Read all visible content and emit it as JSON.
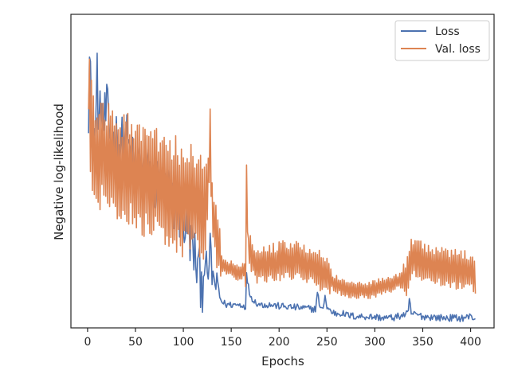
{
  "chart_data": {
    "type": "line",
    "title": "",
    "xlabel": "Epochs",
    "ylabel": "Negative log-likelihood",
    "xlim": [
      -17.4,
      424.5
    ],
    "ylim": [
      0,
      100
    ],
    "x_ticks": [
      0,
      50,
      100,
      150,
      200,
      250,
      300,
      350,
      400
    ],
    "y_ticks_visible": false,
    "grid": false,
    "legend": "top-right",
    "series": [
      {
        "name": "Loss",
        "color": "#4c72b0",
        "keypoints": [
          [
            1,
            74
          ],
          [
            2,
            100
          ],
          [
            3,
            88
          ],
          [
            4,
            70
          ],
          [
            5,
            50
          ],
          [
            6,
            72
          ],
          [
            8,
            60
          ],
          [
            10,
            86
          ],
          [
            12,
            64
          ],
          [
            14,
            75
          ],
          [
            16,
            66
          ],
          [
            20,
            72
          ],
          [
            25,
            60
          ],
          [
            30,
            63
          ],
          [
            35,
            60
          ],
          [
            40,
            63
          ],
          [
            45,
            56
          ],
          [
            50,
            52
          ],
          [
            55,
            55
          ],
          [
            60,
            50
          ],
          [
            65,
            51
          ],
          [
            70,
            46
          ],
          [
            75,
            48
          ],
          [
            80,
            44
          ],
          [
            85,
            44
          ],
          [
            90,
            40
          ],
          [
            95,
            38
          ],
          [
            100,
            34
          ],
          [
            105,
            32
          ],
          [
            110,
            25
          ],
          [
            115,
            18
          ],
          [
            118,
            15
          ],
          [
            120,
            13
          ],
          [
            122,
            24
          ],
          [
            125,
            12
          ],
          [
            128,
            26
          ],
          [
            130,
            16
          ],
          [
            135,
            12
          ],
          [
            140,
            7
          ],
          [
            145,
            6
          ],
          [
            150,
            6
          ],
          [
            155,
            6
          ],
          [
            160,
            6
          ],
          [
            165,
            5.5
          ],
          [
            166,
            16
          ],
          [
            168,
            12
          ],
          [
            170,
            9
          ],
          [
            175,
            7
          ],
          [
            180,
            6
          ],
          [
            190,
            6
          ],
          [
            200,
            5.5
          ],
          [
            220,
            5
          ],
          [
            238,
            4.5
          ],
          [
            240,
            10
          ],
          [
            243,
            4.8
          ],
          [
            245,
            4
          ],
          [
            248,
            9
          ],
          [
            250,
            5
          ],
          [
            255,
            3.5
          ],
          [
            260,
            3
          ],
          [
            265,
            3.2
          ],
          [
            270,
            2.5
          ],
          [
            280,
            2
          ],
          [
            290,
            2
          ],
          [
            300,
            1.8
          ],
          [
            310,
            1.5
          ],
          [
            320,
            1.6
          ],
          [
            330,
            2.5
          ],
          [
            335,
            3
          ],
          [
            336,
            8
          ],
          [
            338,
            3
          ],
          [
            345,
            2.5
          ],
          [
            350,
            2
          ],
          [
            360,
            1.8
          ],
          [
            370,
            1.5
          ],
          [
            380,
            1.5
          ],
          [
            390,
            1.4
          ],
          [
            400,
            2
          ],
          [
            405,
            1.2
          ]
        ]
      },
      {
        "name": "Val. loss",
        "color": "#dd8452",
        "keypoints": [
          [
            1,
            88
          ],
          [
            3,
            68
          ],
          [
            6,
            60
          ],
          [
            10,
            52
          ],
          [
            15,
            58
          ],
          [
            20,
            55
          ],
          [
            30,
            53
          ],
          [
            40,
            52
          ],
          [
            50,
            50
          ],
          [
            60,
            48
          ],
          [
            70,
            47
          ],
          [
            80,
            46
          ],
          [
            90,
            44
          ],
          [
            100,
            42
          ],
          [
            110,
            42
          ],
          [
            120,
            40
          ],
          [
            125,
            42
          ],
          [
            128,
            63
          ],
          [
            130,
            40
          ],
          [
            135,
            28
          ],
          [
            140,
            20
          ],
          [
            150,
            18
          ],
          [
            160,
            17
          ],
          [
            165,
            18
          ],
          [
            166,
            50
          ],
          [
            168,
            25
          ],
          [
            175,
            20
          ],
          [
            185,
            20
          ],
          [
            195,
            20
          ],
          [
            205,
            21
          ],
          [
            215,
            21
          ],
          [
            225,
            20
          ],
          [
            235,
            19
          ],
          [
            245,
            17
          ],
          [
            255,
            14
          ],
          [
            265,
            12
          ],
          [
            275,
            11
          ],
          [
            285,
            11
          ],
          [
            295,
            11
          ],
          [
            305,
            12
          ],
          [
            315,
            13
          ],
          [
            325,
            14
          ],
          [
            333,
            15
          ],
          [
            338,
            22
          ],
          [
            345,
            21
          ],
          [
            355,
            20
          ],
          [
            365,
            19
          ],
          [
            375,
            18
          ],
          [
            385,
            18
          ],
          [
            395,
            18
          ],
          [
            400,
            17
          ],
          [
            405,
            16
          ]
        ]
      }
    ]
  }
}
